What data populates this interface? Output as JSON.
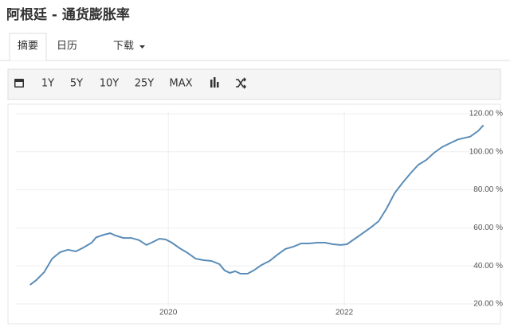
{
  "header": {
    "title": "阿根廷 - 通货膨胀率"
  },
  "tabs": [
    "摘要",
    "日历",
    "下载"
  ],
  "toolbar": {
    "ranges": [
      "1Y",
      "5Y",
      "10Y",
      "25Y",
      "MAX"
    ]
  },
  "chart_data": {
    "type": "line",
    "x": [
      2018.43,
      2018.5,
      2018.59,
      2018.68,
      2018.77,
      2018.86,
      2018.95,
      2019.04,
      2019.13,
      2019.18,
      2019.27,
      2019.34,
      2019.4,
      2019.49,
      2019.58,
      2019.67,
      2019.75,
      2019.81,
      2019.9,
      2019.97,
      2020.04,
      2020.13,
      2020.22,
      2020.31,
      2020.4,
      2020.49,
      2020.58,
      2020.64,
      2020.7,
      2020.76,
      2020.82,
      2020.9,
      2020.97,
      2021.06,
      2021.15,
      2021.24,
      2021.33,
      2021.42,
      2021.51,
      2021.6,
      2021.69,
      2021.78,
      2021.87,
      2021.96,
      2022.03,
      2022.12,
      2022.21,
      2022.3,
      2022.39,
      2022.48,
      2022.57,
      2022.66,
      2022.75,
      2022.84,
      2022.93,
      2023.02,
      2023.11,
      2023.2,
      2023.29,
      2023.43,
      2023.52,
      2023.58
    ],
    "series": [
      {
        "color": "#5b8db8",
        "values": [
          30.0,
          32.5,
          36.7,
          43.8,
          47.2,
          48.5,
          47.6,
          49.7,
          52.2,
          55.0,
          56.4,
          57.2,
          56.0,
          54.7,
          54.7,
          53.5,
          51.0,
          52.2,
          54.3,
          53.9,
          52.2,
          49.3,
          46.8,
          43.8,
          43.0,
          42.6,
          40.9,
          37.6,
          36.3,
          37.2,
          35.9,
          35.9,
          37.6,
          40.5,
          42.6,
          45.9,
          48.9,
          50.1,
          51.8,
          51.8,
          52.2,
          52.2,
          51.4,
          51.0,
          51.4,
          54.3,
          57.2,
          60.2,
          63.5,
          70.2,
          78.2,
          83.6,
          88.6,
          93.2,
          95.7,
          99.5,
          102.5,
          104.5,
          106.5,
          108.0,
          111.0,
          114.0
        ]
      }
    ],
    "xlim": [
      2018.36,
      2023.61
    ],
    "xticks": [
      2020,
      2022
    ],
    "ylim": [
      20,
      120
    ],
    "yticks": [
      {
        "value": 20,
        "label": "20.00 %"
      },
      {
        "value": 40,
        "label": "40.00 %"
      },
      {
        "value": 60,
        "label": "60.00 %"
      },
      {
        "value": 80,
        "label": "80.00 %"
      },
      {
        "value": 100,
        "label": "100.00 %"
      },
      {
        "value": 120,
        "label": "120.00 %"
      }
    ],
    "grid": true
  }
}
